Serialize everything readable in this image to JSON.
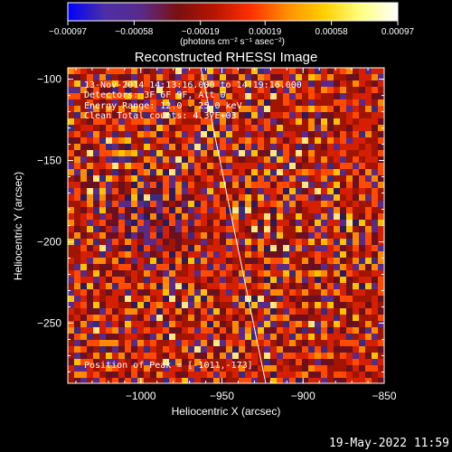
{
  "chart_data": {
    "type": "heatmap",
    "title": "Reconstructed RHESSI Image",
    "xlabel": "Heliocentric X (arcsec)",
    "ylabel": "Heliocentric Y (arcsec)",
    "xlim": [
      -1045,
      -850
    ],
    "ylim": [
      -287,
      -93
    ],
    "x_ticks": [
      {
        "value": -1000,
        "label": "−1000"
      },
      {
        "value": -950,
        "label": "−950"
      },
      {
        "value": -900,
        "label": "−900"
      },
      {
        "value": -850,
        "label": "−850"
      }
    ],
    "y_ticks": [
      {
        "value": -100,
        "label": "−100"
      },
      {
        "value": -150,
        "label": "−150"
      },
      {
        "value": -200,
        "label": "−200"
      },
      {
        "value": -250,
        "label": "−250"
      }
    ],
    "colorbar": {
      "range": [
        -0.00097,
        0.00097
      ],
      "ticks": [
        {
          "value": -0.00097,
          "label": "−0.00097"
        },
        {
          "value": -0.00058,
          "label": "−0.00058"
        },
        {
          "value": -0.00019,
          "label": "−0.00019"
        },
        {
          "value": 0.00019,
          "label": "0.00019"
        },
        {
          "value": 0.00058,
          "label": "0.00058"
        },
        {
          "value": 0.00097,
          "label": "0.00097"
        }
      ],
      "units": "(photons cm⁻² s⁻¹ asec⁻²)",
      "colors": [
        "#0000ff",
        "#4b2fa6",
        "#5a2a8a",
        "#7a1010",
        "#b81500",
        "#ff3000",
        "#ff9000",
        "#ffd000",
        "#ffff80",
        "#ffffff"
      ]
    },
    "annotations": [
      "13-Nov-2014 14:13:16.000 to 14:19:16.000",
      "Detectors: 3F 6F 9F, Att 0",
      "Energy Range: 12.0 - 25.0 keV",
      "Clean    Total counts: 4.37E+03"
    ],
    "peak_label": "Position of Peak = [-1011,-173]",
    "peak": {
      "x": -1011,
      "y": -173
    },
    "limb_line": [
      {
        "x": -963,
        "y": -93
      },
      {
        "x": -923,
        "y": -287
      }
    ],
    "grid": false
  },
  "footer": {
    "timestamp": "19-May-2022 11:59"
  }
}
